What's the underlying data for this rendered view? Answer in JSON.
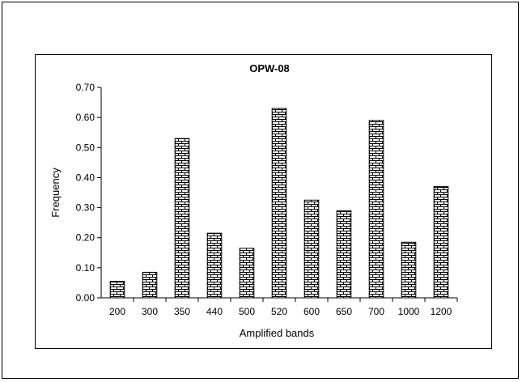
{
  "chart_data": {
    "type": "bar",
    "title": "OPW-08",
    "xlabel": "Amplified bands",
    "ylabel": "Frequency",
    "categories": [
      "200",
      "300",
      "350",
      "440",
      "500",
      "520",
      "600",
      "650",
      "700",
      "1000",
      "1200"
    ],
    "values": [
      0.055,
      0.085,
      0.53,
      0.215,
      0.165,
      0.63,
      0.325,
      0.29,
      0.59,
      0.185,
      0.37
    ],
    "ylim": [
      0,
      0.7
    ],
    "yticks": [
      "0.00",
      "0.10",
      "0.20",
      "0.30",
      "0.40",
      "0.50",
      "0.60",
      "0.70"
    ],
    "grid": false,
    "legend": "none",
    "bar_fill": "brick-pattern",
    "bar_color": "#000000",
    "background": "#ffffff"
  }
}
